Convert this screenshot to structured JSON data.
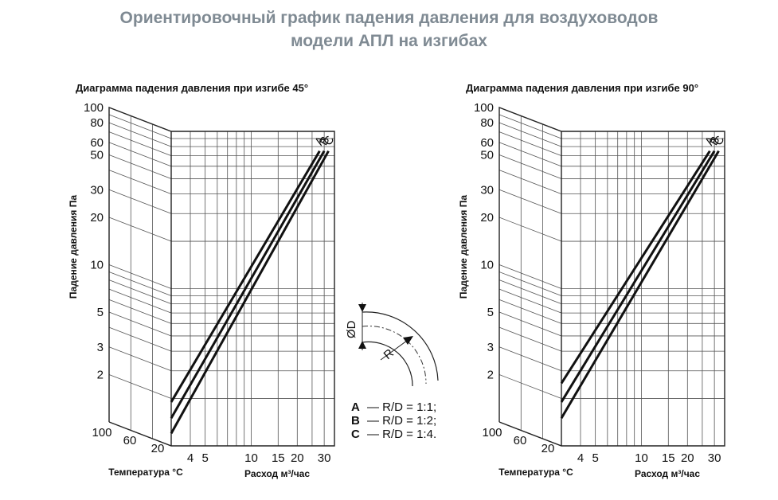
{
  "page": {
    "title_line1": "Ориентировочный график падения давления для воздуховодов",
    "title_line2": "модели АПЛ на изгибах"
  },
  "chart_data": [
    {
      "type": "line",
      "title": "Диаграмма падения давления при изгибе 45°",
      "ylabel": "Падение давления Па",
      "xlabel": "Расход м³/час",
      "temp_label": "Температура °С",
      "y_scale": "log",
      "x_scale": "log",
      "ylim": [
        1,
        100
      ],
      "xlim": [
        3,
        35
      ],
      "y_ticks": [
        2,
        3,
        5,
        10,
        20,
        30,
        50,
        60,
        80,
        100
      ],
      "x_ticks": [
        4,
        5,
        10,
        15,
        20,
        30
      ],
      "temp_ticks": [
        100,
        60,
        20
      ],
      "grid": true,
      "series": [
        {
          "name": "A",
          "x": [
            3,
            28
          ],
          "y": [
            1.9,
            75
          ]
        },
        {
          "name": "B",
          "x": [
            3,
            30
          ],
          "y": [
            1.5,
            75
          ]
        },
        {
          "name": "C",
          "x": [
            3,
            32
          ],
          "y": [
            1.2,
            75
          ]
        }
      ]
    },
    {
      "type": "line",
      "title": "Диаграмма падения давления при изгибе 90°",
      "ylabel": "Падение давления Па",
      "xlabel": "Расход м³/час",
      "temp_label": "Температура °С",
      "y_scale": "log",
      "x_scale": "log",
      "ylim": [
        1,
        100
      ],
      "xlim": [
        3,
        35
      ],
      "y_ticks": [
        2,
        3,
        5,
        10,
        20,
        30,
        50,
        60,
        80,
        100
      ],
      "x_ticks": [
        4,
        5,
        10,
        15,
        20,
        30
      ],
      "temp_ticks": [
        100,
        60,
        20
      ],
      "grid": true,
      "series": [
        {
          "name": "A",
          "x": [
            3,
            28
          ],
          "y": [
            2.5,
            75
          ]
        },
        {
          "name": "B",
          "x": [
            3,
            30
          ],
          "y": [
            1.9,
            75
          ]
        },
        {
          "name": "C",
          "x": [
            3,
            32
          ],
          "y": [
            1.5,
            75
          ]
        }
      ]
    }
  ],
  "legend": {
    "items": [
      {
        "key": "A",
        "text": "— R/D = 1:1;"
      },
      {
        "key": "B",
        "text": "— R/D = 1:2;"
      },
      {
        "key": "C",
        "text": "— R/D = 1:4."
      }
    ],
    "diagram_labels": {
      "diameter": "ØD",
      "radius": "R"
    }
  }
}
